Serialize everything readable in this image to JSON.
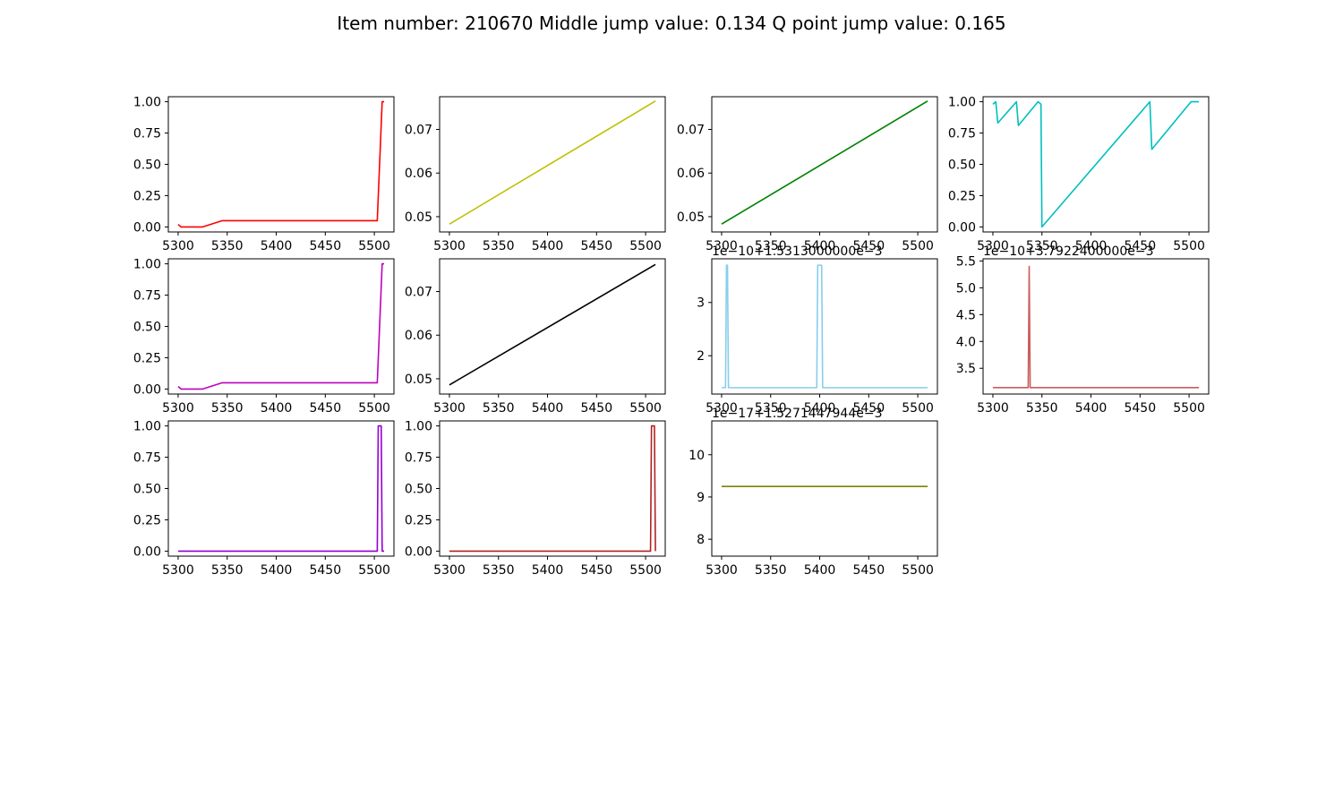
{
  "figure": {
    "title": "Item number: 210670  Middle jump value: 0.134  Q point jump value: 0.165"
  },
  "chart_data": [
    {
      "type": "line",
      "grid": false,
      "color": "#ff0000",
      "xlim": [
        5290,
        5520
      ],
      "ylim": [
        -0.04,
        1.04
      ],
      "xticks": [
        5300,
        5350,
        5400,
        5450,
        5500
      ],
      "yticks": [
        0.0,
        0.25,
        0.5,
        0.75,
        1.0
      ],
      "ytick_labels": [
        "0.00",
        "0.25",
        "0.50",
        "0.75",
        "1.00"
      ],
      "offset_text": "",
      "x": [
        5300,
        5303,
        5325,
        5345,
        5503,
        5508,
        5510
      ],
      "y": [
        0.02,
        0.0,
        0.0,
        0.05,
        0.05,
        1.0,
        1.0
      ]
    },
    {
      "type": "line",
      "grid": false,
      "color": "#bfbf00",
      "xlim": [
        5290,
        5520
      ],
      "ylim": [
        0.0465,
        0.0775
      ],
      "xticks": [
        5300,
        5350,
        5400,
        5450,
        5500
      ],
      "yticks": [
        0.05,
        0.06,
        0.07
      ],
      "ytick_labels": [
        "0.05",
        "0.06",
        "0.07"
      ],
      "offset_text": "",
      "x": [
        5300,
        5510
      ],
      "y": [
        0.0483,
        0.0765
      ]
    },
    {
      "type": "line",
      "grid": false,
      "color": "#008000",
      "xlim": [
        5290,
        5520
      ],
      "ylim": [
        0.0465,
        0.0775
      ],
      "xticks": [
        5300,
        5350,
        5400,
        5450,
        5500
      ],
      "yticks": [
        0.05,
        0.06,
        0.07
      ],
      "ytick_labels": [
        "0.05",
        "0.06",
        "0.07"
      ],
      "offset_text": "",
      "x": [
        5300,
        5510
      ],
      "y": [
        0.0483,
        0.0765
      ]
    },
    {
      "type": "line",
      "grid": false,
      "color": "#00bfbf",
      "xlim": [
        5290,
        5520
      ],
      "ylim": [
        -0.04,
        1.04
      ],
      "xticks": [
        5300,
        5350,
        5400,
        5450,
        5500
      ],
      "yticks": [
        0.0,
        0.25,
        0.5,
        0.75,
        1.0
      ],
      "ytick_labels": [
        "0.00",
        "0.25",
        "0.50",
        "0.75",
        "1.00"
      ],
      "offset_text": "",
      "x": [
        5300,
        5303,
        5305,
        5324,
        5326,
        5346,
        5349,
        5350,
        5460,
        5462,
        5502,
        5510
      ],
      "y": [
        0.98,
        1.0,
        0.83,
        1.0,
        0.81,
        1.0,
        0.98,
        0.0,
        1.0,
        0.62,
        1.0,
        1.0
      ]
    },
    {
      "type": "line",
      "grid": false,
      "color": "#bf00bf",
      "xlim": [
        5290,
        5520
      ],
      "ylim": [
        -0.04,
        1.04
      ],
      "xticks": [
        5300,
        5350,
        5400,
        5450,
        5500
      ],
      "yticks": [
        0.0,
        0.25,
        0.5,
        0.75,
        1.0
      ],
      "ytick_labels": [
        "0.00",
        "0.25",
        "0.50",
        "0.75",
        "1.00"
      ],
      "offset_text": "",
      "x": [
        5300,
        5303,
        5325,
        5345,
        5503,
        5508,
        5510
      ],
      "y": [
        0.02,
        0.0,
        0.0,
        0.05,
        0.05,
        1.0,
        1.0
      ]
    },
    {
      "type": "line",
      "grid": false,
      "color": "#000000",
      "xlim": [
        5290,
        5520
      ],
      "ylim": [
        0.0465,
        0.0775
      ],
      "xticks": [
        5300,
        5350,
        5400,
        5450,
        5500
      ],
      "yticks": [
        0.05,
        0.06,
        0.07
      ],
      "ytick_labels": [
        "0.05",
        "0.06",
        "0.07"
      ],
      "offset_text": "",
      "x": [
        5300,
        5510
      ],
      "y": [
        0.0486,
        0.0762
      ]
    },
    {
      "type": "line",
      "grid": false,
      "color": "#87ceeb",
      "xlim": [
        5290,
        5520
      ],
      "ylim": [
        1.28,
        3.82
      ],
      "xticks": [
        5300,
        5350,
        5400,
        5450,
        5500
      ],
      "yticks": [
        2,
        3
      ],
      "ytick_labels": [
        "2",
        "3"
      ],
      "offset_text": "1e−10+1.5313000000e−3",
      "x": [
        5300,
        5304,
        5305,
        5306,
        5307,
        5397,
        5398,
        5402,
        5403,
        5510
      ],
      "y": [
        1.4,
        1.4,
        3.7,
        3.7,
        1.4,
        1.4,
        3.7,
        3.7,
        1.4,
        1.4
      ]
    },
    {
      "type": "line",
      "grid": false,
      "color": "#cd5c5c",
      "xlim": [
        5290,
        5520
      ],
      "ylim": [
        3.02,
        5.54
      ],
      "xticks": [
        5300,
        5350,
        5400,
        5450,
        5500
      ],
      "yticks": [
        3.5,
        4.0,
        4.5,
        5.0,
        5.5
      ],
      "ytick_labels": [
        "3.5",
        "4.0",
        "4.5",
        "5.0",
        "5.5"
      ],
      "offset_text": "1e−10+3.7922400000e−3",
      "x": [
        5300,
        5336,
        5337,
        5338,
        5510
      ],
      "y": [
        3.14,
        3.14,
        5.4,
        3.14,
        3.14
      ]
    },
    {
      "type": "line",
      "grid": false,
      "color": "#9400d3",
      "xlim": [
        5290,
        5520
      ],
      "ylim": [
        -0.04,
        1.04
      ],
      "xticks": [
        5300,
        5350,
        5400,
        5450,
        5500
      ],
      "yticks": [
        0.0,
        0.25,
        0.5,
        0.75,
        1.0
      ],
      "ytick_labels": [
        "0.00",
        "0.25",
        "0.50",
        "0.75",
        "1.00"
      ],
      "offset_text": "",
      "x": [
        5300,
        5503,
        5504,
        5507,
        5508,
        5510
      ],
      "y": [
        0.0,
        0.0,
        1.0,
        1.0,
        0.0,
        0.0
      ]
    },
    {
      "type": "line",
      "grid": false,
      "color": "#b22222",
      "xlim": [
        5290,
        5520
      ],
      "ylim": [
        -0.04,
        1.04
      ],
      "xticks": [
        5300,
        5350,
        5400,
        5450,
        5500
      ],
      "yticks": [
        0.0,
        0.25,
        0.5,
        0.75,
        1.0
      ],
      "ytick_labels": [
        "0.00",
        "0.25",
        "0.50",
        "0.75",
        "1.00"
      ],
      "offset_text": "",
      "x": [
        5300,
        5505,
        5506,
        5509,
        5510
      ],
      "y": [
        0.0,
        0.0,
        1.0,
        1.0,
        0.0
      ]
    },
    {
      "type": "line",
      "grid": false,
      "color": "#808000",
      "xlim": [
        5290,
        5520
      ],
      "ylim": [
        7.6,
        10.8
      ],
      "xticks": [
        5300,
        5350,
        5400,
        5450,
        5500
      ],
      "yticks": [
        8,
        9,
        10
      ],
      "ytick_labels": [
        "8",
        "9",
        "10"
      ],
      "offset_text": "1e−17+1.5271447944e−3",
      "x": [
        5300,
        5510
      ],
      "y": [
        9.25,
        9.25
      ]
    }
  ]
}
